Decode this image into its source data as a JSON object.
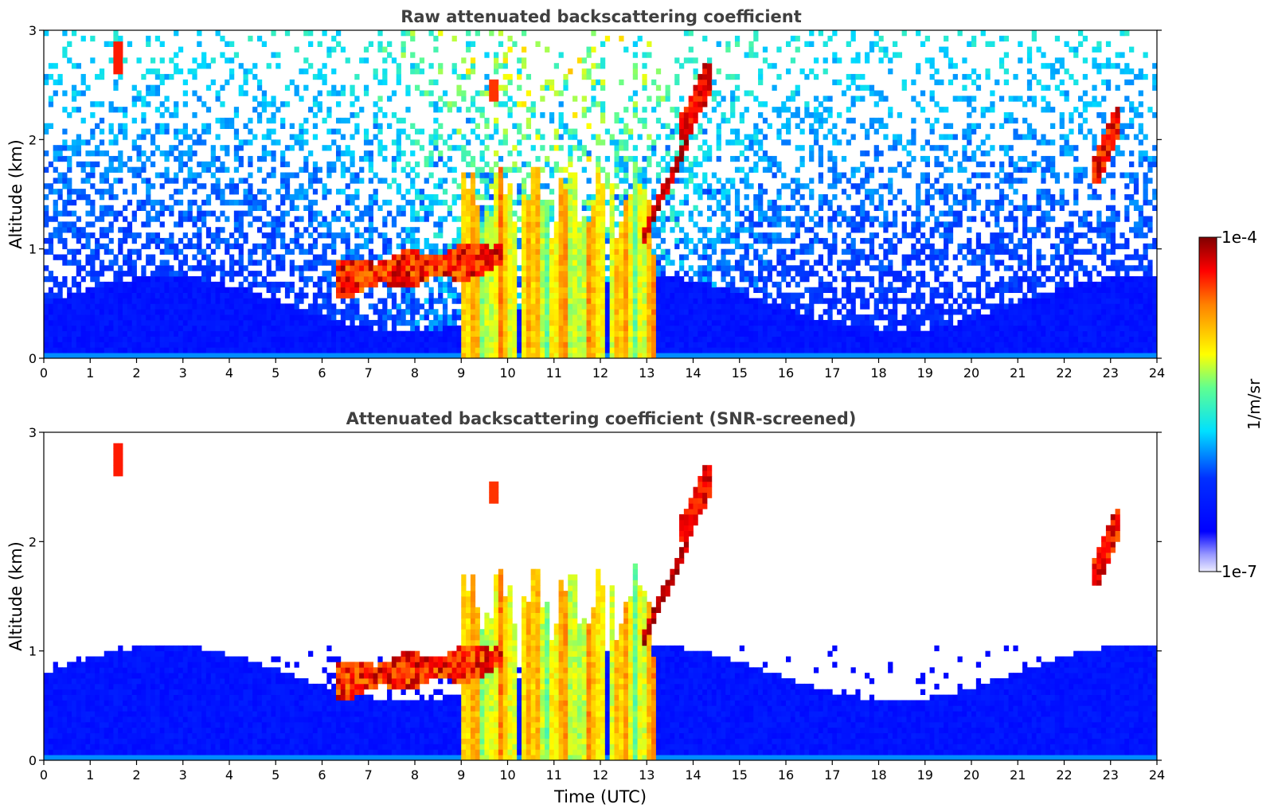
{
  "chart_data": [
    {
      "type": "heatmap",
      "title": "Raw attenuated backscattering coefficient",
      "xlabel": "",
      "ylabel": "Altitude (km)",
      "xlim": [
        0,
        24
      ],
      "ylim": [
        0,
        3
      ],
      "x_ticks": [
        "0",
        "1",
        "2",
        "3",
        "4",
        "5",
        "6",
        "7",
        "8",
        "9",
        "10",
        "11",
        "12",
        "13",
        "14",
        "15",
        "16",
        "17",
        "18",
        "19",
        "20",
        "21",
        "22",
        "23",
        "24"
      ],
      "y_ticks": [
        "0",
        "1",
        "2",
        "3"
      ],
      "screened": false,
      "features": [
        {
          "name": "surface noise layer",
          "x": [
            0,
            24
          ],
          "y": [
            0,
            0.5
          ],
          "level": "low"
        },
        {
          "name": "aerosol layer",
          "x": [
            6.3,
            9.9
          ],
          "y": [
            0.65,
            1.0
          ],
          "level": "high"
        },
        {
          "name": "rain shafts",
          "x": [
            9.0,
            13.2
          ],
          "y": [
            0,
            1.8
          ],
          "level": "mid-high"
        },
        {
          "name": "rising cloud edge",
          "x": [
            12.9,
            13.9
          ],
          "y": [
            1.1,
            2.0
          ],
          "level": "high"
        },
        {
          "name": "high cloud",
          "x": [
            13.7,
            14.4
          ],
          "y": [
            2.0,
            2.7
          ],
          "level": "high"
        },
        {
          "name": "isolated cloud",
          "x": [
            22.6,
            23.2
          ],
          "y": [
            1.6,
            2.3
          ],
          "level": "high"
        },
        {
          "name": "small cloud",
          "x": [
            1.5,
            1.7
          ],
          "y": [
            2.6,
            2.9
          ],
          "level": "high"
        }
      ]
    },
    {
      "type": "heatmap",
      "title": "Attenuated backscattering coefficient (SNR-screened)",
      "xlabel": "Time (UTC)",
      "ylabel": "Altitude (km)",
      "xlim": [
        0,
        24
      ],
      "ylim": [
        0,
        3
      ],
      "x_ticks": [
        "0",
        "1",
        "2",
        "3",
        "4",
        "5",
        "6",
        "7",
        "8",
        "9",
        "10",
        "11",
        "12",
        "13",
        "14",
        "15",
        "16",
        "17",
        "18",
        "19",
        "20",
        "21",
        "22",
        "23",
        "24"
      ],
      "y_ticks": [
        "0",
        "1",
        "2",
        "3"
      ],
      "screened": true,
      "features": [
        {
          "name": "boundary layer",
          "x": [
            0,
            24
          ],
          "y": [
            0,
            0.9
          ],
          "level": "low"
        },
        {
          "name": "aerosol layer",
          "x": [
            6.3,
            9.9
          ],
          "y": [
            0.65,
            1.0
          ],
          "level": "high"
        },
        {
          "name": "rain shafts",
          "x": [
            9.0,
            13.2
          ],
          "y": [
            0,
            1.8
          ],
          "level": "mid-high"
        },
        {
          "name": "rising cloud edge",
          "x": [
            12.9,
            13.9
          ],
          "y": [
            1.1,
            2.0
          ],
          "level": "high"
        },
        {
          "name": "high cloud",
          "x": [
            13.7,
            14.4
          ],
          "y": [
            2.0,
            2.7
          ],
          "level": "high"
        },
        {
          "name": "isolated cloud",
          "x": [
            22.6,
            23.2
          ],
          "y": [
            1.6,
            2.3
          ],
          "level": "high"
        },
        {
          "name": "small cloud",
          "x": [
            1.5,
            1.7
          ],
          "y": [
            2.6,
            2.9
          ],
          "level": "high"
        }
      ]
    }
  ],
  "colorbar": {
    "max_label": "1e-4",
    "min_label": "1e-7",
    "unit_label": "1/m/sr",
    "colors": [
      "#800000",
      "#ff0000",
      "#ffff00",
      "#00ffff",
      "#0000ff",
      "#e8e8ff"
    ]
  }
}
